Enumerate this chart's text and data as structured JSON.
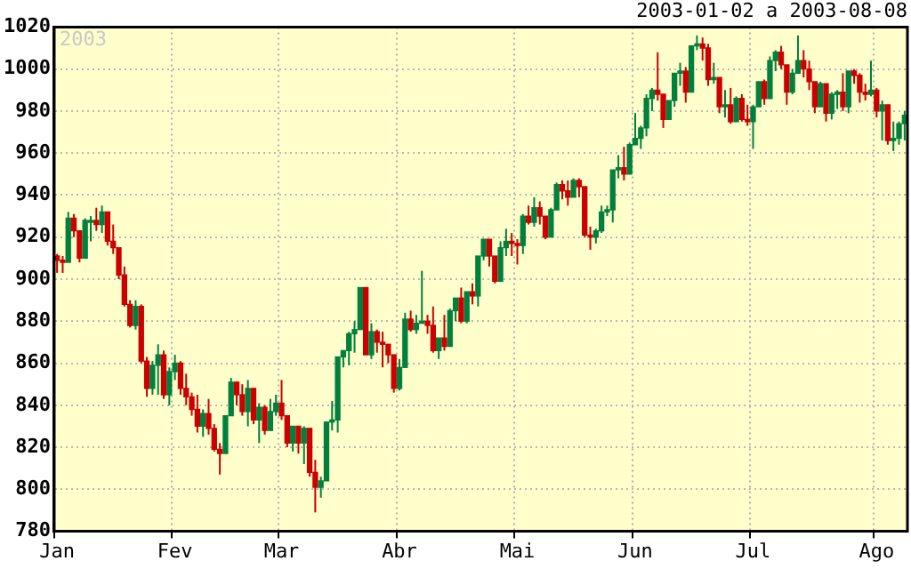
{
  "chart_data": {
    "type": "candlestick",
    "title": "2003-01-02 a 2003-08-08",
    "annotations": [
      "2003"
    ],
    "categories": [
      "Jan",
      null,
      null,
      null,
      null,
      null,
      null,
      null,
      null,
      null,
      null,
      null,
      null,
      null,
      null,
      null,
      null,
      null,
      null,
      null,
      null,
      "Fev",
      null,
      null,
      null,
      null,
      null,
      null,
      null,
      null,
      null,
      null,
      null,
      null,
      null,
      null,
      null,
      null,
      null,
      null,
      "Mar",
      null,
      null,
      null,
      null,
      null,
      null,
      null,
      null,
      null,
      null,
      null,
      null,
      null,
      null,
      null,
      null,
      null,
      null,
      null,
      null,
      "Abr",
      null,
      null,
      null,
      null,
      null,
      null,
      null,
      null,
      null,
      null,
      null,
      null,
      null,
      null,
      null,
      null,
      null,
      null,
      null,
      null,
      "Mai",
      null,
      null,
      null,
      null,
      null,
      null,
      null,
      null,
      null,
      null,
      null,
      null,
      null,
      null,
      null,
      null,
      null,
      null,
      null,
      null,
      "Jun",
      null,
      null,
      null,
      null,
      null,
      null,
      null,
      null,
      null,
      null,
      null,
      null,
      null,
      null,
      null,
      null,
      null,
      null,
      null,
      null,
      "Jul",
      null,
      null,
      null,
      null,
      null,
      null,
      null,
      null,
      null,
      null,
      null,
      null,
      null,
      null,
      null,
      null,
      null,
      null,
      null,
      null,
      null,
      "Ago",
      null,
      null,
      null,
      null,
      null
    ],
    "ohlc": [
      [
        911,
        912,
        903,
        909
      ],
      [
        909,
        911,
        903,
        908
      ],
      [
        908,
        932,
        908,
        929
      ],
      [
        929,
        931,
        920,
        923
      ],
      [
        923,
        923,
        908,
        910
      ],
      [
        910,
        929,
        910,
        928
      ],
      [
        927,
        930,
        918,
        928
      ],
      [
        928,
        934,
        923,
        926
      ],
      [
        926,
        935,
        922,
        932
      ],
      [
        932,
        932,
        916,
        918
      ],
      [
        918,
        926,
        912,
        915
      ],
      [
        915,
        915,
        900,
        902
      ],
      [
        902,
        906,
        887,
        888
      ],
      [
        888,
        890,
        877,
        878
      ],
      [
        878,
        890,
        876,
        887
      ],
      [
        887,
        888,
        860,
        861
      ],
      [
        861,
        863,
        844,
        848
      ],
      [
        848,
        861,
        845,
        859
      ],
      [
        859,
        869,
        845,
        864
      ],
      [
        864,
        866,
        843,
        845
      ],
      [
        845,
        858,
        840,
        856
      ],
      [
        856,
        864,
        852,
        860
      ],
      [
        860,
        861,
        845,
        848
      ],
      [
        848,
        855,
        840,
        844
      ],
      [
        844,
        846,
        835,
        838
      ],
      [
        838,
        845,
        827,
        830
      ],
      [
        830,
        838,
        825,
        836
      ],
      [
        836,
        843,
        826,
        829
      ],
      [
        829,
        831,
        818,
        819
      ],
      [
        819,
        822,
        807,
        817
      ],
      [
        817,
        835,
        817,
        835
      ],
      [
        835,
        853,
        835,
        851
      ],
      [
        851,
        851,
        840,
        845
      ],
      [
        845,
        850,
        835,
        837
      ],
      [
        837,
        852,
        830,
        848
      ],
      [
        848,
        848,
        831,
        833
      ],
      [
        833,
        841,
        822,
        839
      ],
      [
        839,
        840,
        826,
        828
      ],
      [
        828,
        843,
        828,
        837
      ],
      [
        837,
        845,
        835,
        841
      ],
      [
        841,
        852,
        833,
        835
      ],
      [
        835,
        835,
        820,
        822
      ],
      [
        822,
        830,
        818,
        830
      ],
      [
        830,
        830,
        817,
        822
      ],
      [
        822,
        830,
        812,
        829
      ],
      [
        829,
        829,
        806,
        808
      ],
      [
        808,
        814,
        789,
        801
      ],
      [
        801,
        806,
        796,
        804
      ],
      [
        804,
        832,
        804,
        832
      ],
      [
        832,
        842,
        828,
        833
      ],
      [
        833,
        863,
        827,
        863
      ],
      [
        863,
        866,
        858,
        866
      ],
      [
        866,
        875,
        859,
        874
      ],
      [
        874,
        880,
        865,
        876
      ],
      [
        876,
        896,
        876,
        896
      ],
      [
        896,
        896,
        864,
        864
      ],
      [
        864,
        879,
        862,
        875
      ],
      [
        875,
        876,
        865,
        870
      ],
      [
        870,
        875,
        858,
        869
      ],
      [
        869,
        869,
        860,
        864
      ],
      [
        864,
        864,
        846,
        848
      ],
      [
        848,
        862,
        847,
        858
      ],
      [
        858,
        884,
        858,
        881
      ],
      [
        881,
        885,
        875,
        876
      ],
      [
        876,
        883,
        874,
        879
      ],
      [
        879,
        904,
        879,
        880
      ],
      [
        880,
        883,
        874,
        878
      ],
      [
        878,
        887,
        865,
        866
      ],
      [
        866,
        872,
        862,
        872
      ],
      [
        872,
        883,
        866,
        868
      ],
      [
        868,
        886,
        868,
        885
      ],
      [
        885,
        891,
        880,
        891
      ],
      [
        891,
        896,
        879,
        880
      ],
      [
        880,
        894,
        879,
        894
      ],
      [
        894,
        898,
        888,
        892
      ],
      [
        892,
        911,
        887,
        911
      ],
      [
        911,
        919,
        909,
        919
      ],
      [
        919,
        919,
        906,
        911
      ],
      [
        911,
        911,
        898,
        899
      ],
      [
        899,
        918,
        899,
        915
      ],
      [
        915,
        924,
        911,
        918
      ],
      [
        918,
        922,
        911,
        917
      ],
      [
        917,
        919,
        907,
        916
      ],
      [
        916,
        931,
        912,
        930
      ],
      [
        930,
        935,
        926,
        927
      ],
      [
        927,
        939,
        925,
        934
      ],
      [
        934,
        937,
        926,
        930
      ],
      [
        930,
        930,
        919,
        920
      ],
      [
        920,
        934,
        920,
        933
      ],
      [
        933,
        946,
        933,
        945
      ],
      [
        945,
        947,
        938,
        942
      ],
      [
        942,
        947,
        935,
        939
      ],
      [
        939,
        948,
        939,
        947
      ],
      [
        947,
        948,
        939,
        944
      ],
      [
        944,
        944,
        920,
        921
      ],
      [
        921,
        925,
        914,
        920
      ],
      [
        920,
        924,
        917,
        923
      ],
      [
        923,
        935,
        922,
        932
      ],
      [
        932,
        935,
        930,
        933
      ],
      [
        933,
        952,
        927,
        952
      ],
      [
        952,
        959,
        948,
        953
      ],
      [
        953,
        963,
        947,
        950
      ],
      [
        950,
        965,
        950,
        964
      ],
      [
        964,
        979,
        964,
        967
      ],
      [
        967,
        973,
        962,
        972
      ],
      [
        972,
        988,
        968,
        986
      ],
      [
        986,
        991,
        980,
        990
      ],
      [
        990,
        1008,
        985,
        988
      ],
      [
        988,
        988,
        972,
        976
      ],
      [
        976,
        985,
        976,
        985
      ],
      [
        985,
        998,
        982,
        998
      ],
      [
        998,
        1003,
        992,
        999
      ],
      [
        999,
        1001,
        984,
        989
      ],
      [
        989,
        1011,
        989,
        1011
      ],
      [
        1011,
        1016,
        1009,
        1012
      ],
      [
        1012,
        1015,
        1004,
        1010
      ],
      [
        1010,
        1012,
        992,
        995
      ],
      [
        995,
        1003,
        993,
        996
      ],
      [
        996,
        996,
        979,
        982
      ],
      [
        982,
        990,
        977,
        983
      ],
      [
        983,
        991,
        974,
        975
      ],
      [
        975,
        987,
        975,
        986
      ],
      [
        986,
        988,
        975,
        976
      ],
      [
        976,
        983,
        973,
        975
      ],
      [
        975,
        983,
        962,
        982
      ],
      [
        982,
        994,
        982,
        994
      ],
      [
        994,
        995,
        983,
        986
      ],
      [
        986,
        1006,
        986,
        1004
      ],
      [
        1004,
        1009,
        999,
        1008
      ],
      [
        1008,
        1011,
        1000,
        1002
      ],
      [
        1002,
        1002,
        983,
        989
      ],
      [
        989,
        1000,
        988,
        998
      ],
      [
        998,
        1016,
        998,
        1004
      ],
      [
        1004,
        1009,
        996,
        1000
      ],
      [
        1000,
        1004,
        990,
        994
      ],
      [
        994,
        994,
        979,
        982
      ],
      [
        982,
        994,
        982,
        993
      ],
      [
        993,
        993,
        975,
        979
      ],
      [
        979,
        989,
        976,
        988
      ],
      [
        988,
        990,
        981,
        989
      ],
      [
        989,
        998,
        980,
        982
      ],
      [
        982,
        999,
        979,
        999
      ],
      [
        999,
        1000,
        993,
        997
      ],
      [
        997,
        998,
        984,
        989
      ],
      [
        989,
        993,
        985,
        988
      ],
      [
        988,
        1004,
        987,
        990
      ],
      [
        990,
        991,
        977,
        980
      ],
      [
        980,
        985,
        966,
        983
      ],
      [
        983,
        983,
        964,
        966
      ],
      [
        966,
        975,
        961,
        967
      ],
      [
        967,
        975,
        964,
        974
      ],
      [
        974,
        980,
        966,
        978
      ]
    ],
    "colors": [
      "#cc0000",
      "#cc0000",
      "#00803c",
      "#cc0000",
      "#cc0000",
      "#00803c",
      "#00803c",
      "#cc0000",
      "#00803c",
      "#cc0000",
      "#cc0000",
      "#cc0000",
      "#cc0000",
      "#cc0000",
      "#00803c",
      "#cc0000",
      "#cc0000",
      "#00803c",
      "#00803c",
      "#cc0000",
      "#00803c",
      "#00803c",
      "#cc0000",
      "#cc0000",
      "#cc0000",
      "#cc0000",
      "#00803c",
      "#cc0000",
      "#cc0000",
      "#cc0000",
      "#00803c",
      "#00803c",
      "#cc0000",
      "#cc0000",
      "#00803c",
      "#cc0000",
      "#00803c",
      "#cc0000",
      "#00803c",
      "#00803c",
      "#cc0000",
      "#cc0000",
      "#00803c",
      "#cc0000",
      "#00803c",
      "#cc0000",
      "#cc0000",
      "#00803c",
      "#00803c",
      "#00803c",
      "#00803c",
      "#00803c",
      "#00803c",
      "#00803c",
      "#00803c",
      "#cc0000",
      "#00803c",
      "#cc0000",
      "#cc0000",
      "#cc0000",
      "#cc0000",
      "#00803c",
      "#00803c",
      "#cc0000",
      "#00803c",
      "#00803c",
      "#cc0000",
      "#cc0000",
      "#00803c",
      "#cc0000",
      "#00803c",
      "#00803c",
      "#cc0000",
      "#00803c",
      "#cc0000",
      "#00803c",
      "#00803c",
      "#cc0000",
      "#cc0000",
      "#00803c",
      "#00803c",
      "#cc0000",
      "#cc0000",
      "#00803c",
      "#cc0000",
      "#00803c",
      "#cc0000",
      "#cc0000",
      "#00803c",
      "#00803c",
      "#cc0000",
      "#cc0000",
      "#00803c",
      "#cc0000",
      "#cc0000",
      "#cc0000",
      "#00803c",
      "#00803c",
      "#00803c",
      "#00803c",
      "#00803c",
      "#cc0000",
      "#00803c",
      "#00803c",
      "#00803c",
      "#00803c",
      "#00803c",
      "#cc0000",
      "#cc0000",
      "#00803c",
      "#00803c",
      "#00803c",
      "#cc0000",
      "#00803c",
      "#00803c",
      "#cc0000",
      "#cc0000",
      "#00803c",
      "#cc0000",
      "#00803c",
      "#cc0000",
      "#00803c",
      "#cc0000",
      "#cc0000",
      "#00803c",
      "#00803c",
      "#cc0000",
      "#00803c",
      "#00803c",
      "#cc0000",
      "#cc0000",
      "#00803c",
      "#00803c",
      "#cc0000",
      "#cc0000",
      "#cc0000",
      "#00803c",
      "#cc0000",
      "#00803c",
      "#00803c",
      "#cc0000",
      "#00803c",
      "#cc0000",
      "#cc0000",
      "#cc0000",
      "#00803c",
      "#cc0000",
      "#00803c",
      "#cc0000",
      "#00803c",
      "#00803c",
      "#00803c"
    ],
    "ylim": [
      780,
      1020
    ],
    "yticks": [
      780,
      800,
      820,
      840,
      860,
      880,
      900,
      920,
      940,
      960,
      980,
      1000,
      1020
    ],
    "grid": true
  }
}
